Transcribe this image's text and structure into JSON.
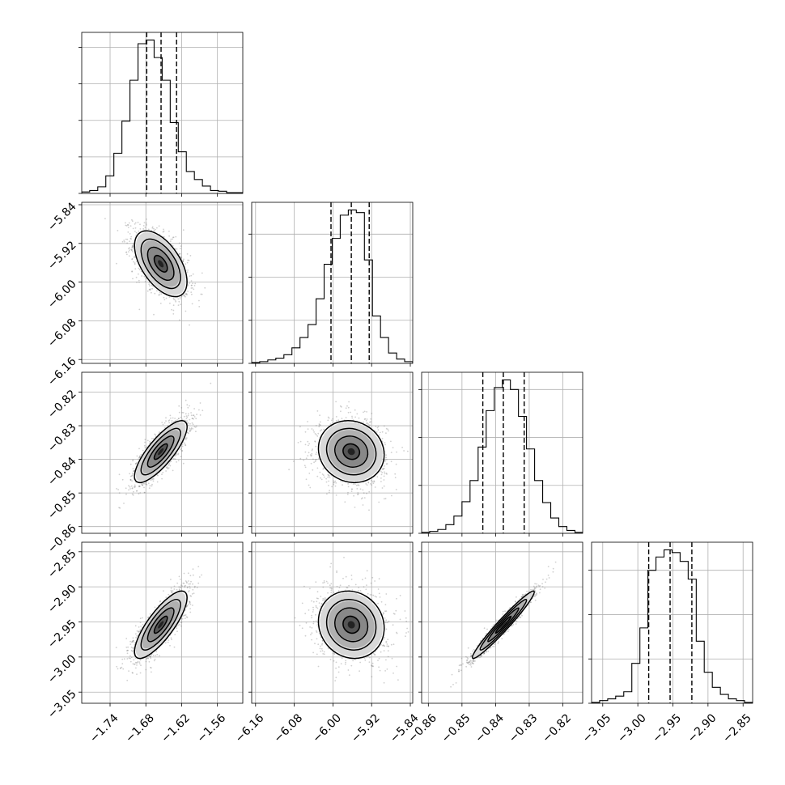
{
  "chart_data": {
    "type": "corner",
    "parameters": [
      {
        "ticks": [
          -1.74,
          -1.68,
          -1.62,
          -1.56
        ],
        "tick_labels": [
          "−1.74",
          "−1.68",
          "−1.62",
          "−1.56"
        ],
        "range": [
          -1.7875,
          -1.5175
        ],
        "quantiles": [
          -1.6785,
          -1.6545,
          -1.6285
        ],
        "hist_bins": [
          -1.7809,
          -1.7674,
          -1.7539,
          -1.7404,
          -1.7269,
          -1.7134,
          -1.6999,
          -1.6864,
          -1.6729,
          -1.6594,
          -1.6459,
          -1.6324,
          -1.6189,
          -1.6054,
          -1.5919,
          -1.5784,
          -1.5649,
          -1.5514,
          -1.5379,
          -1.5244
        ],
        "hist_values": [
          2,
          4,
          9,
          24,
          55,
          99,
          155,
          205,
          210,
          186,
          155,
          97,
          57,
          30,
          19,
          10,
          4,
          3,
          1,
          1
        ]
      },
      {
        "ticks": [
          -6.16,
          -6.08,
          -6.0,
          -5.92,
          -5.84
        ],
        "tick_labels": [
          "−6.16",
          "−6.08",
          "−6.00",
          "−5.92",
          "−5.84"
        ],
        "range": [
          -6.168,
          -5.835
        ],
        "quantiles": [
          -6.004,
          -5.962,
          -5.925
        ],
        "hist_bins": [
          -6.1597,
          -6.1431,
          -6.1264,
          -6.1098,
          -6.0931,
          -6.0765,
          -6.0598,
          -6.0432,
          -6.0265,
          -6.0099,
          -5.9932,
          -5.9766,
          -5.9599,
          -5.9433,
          -5.9266,
          -5.91,
          -5.8933,
          -5.8767,
          -5.86,
          -5.8434
        ],
        "hist_values": [
          1,
          2,
          4,
          6,
          10,
          18,
          30,
          45,
          75,
          115,
          145,
          172,
          178,
          175,
          120,
          55,
          30,
          12,
          5,
          2
        ]
      },
      {
        "ticks": [
          -0.86,
          -0.85,
          -0.84,
          -0.83,
          -0.82
        ],
        "tick_labels": [
          "−0.86",
          "−0.85",
          "−0.84",
          "−0.83",
          "−0.82"
        ],
        "range": [
          -0.862,
          -0.8141
        ],
        "quantiles": [
          -0.8438,
          -0.8377,
          -0.8315
        ],
        "hist_bins": [
          -0.8608,
          -0.8584,
          -0.856,
          -0.8536,
          -0.8512,
          -0.8488,
          -0.8464,
          -0.844,
          -0.8416,
          -0.8392,
          -0.8368,
          -0.8344,
          -0.832,
          -0.8296,
          -0.8272,
          -0.8248,
          -0.8224,
          -0.82,
          -0.8176,
          -0.8152
        ],
        "hist_values": [
          1,
          2,
          4,
          9,
          18,
          33,
          55,
          90,
          128,
          152,
          160,
          150,
          122,
          88,
          55,
          32,
          16,
          7,
          3,
          1
        ]
      },
      {
        "ticks": [
          -3.05,
          -3.0,
          -2.95,
          -2.9,
          -2.85
        ],
        "tick_labels": [
          "−3.05",
          "−3.00",
          "−2.95",
          "−2.90",
          "−2.85"
        ],
        "range": [
          -3.0659,
          -2.8364
        ],
        "quantiles": [
          -2.9845,
          -2.954,
          -2.923
        ],
        "hist_bins": [
          -3.0602,
          -3.0487,
          -3.0372,
          -3.0258,
          -3.0143,
          -3.0028,
          -2.9913,
          -2.9799,
          -2.9684,
          -2.9569,
          -2.9454,
          -2.934,
          -2.9225,
          -2.911,
          -2.8996,
          -2.8881,
          -2.8766,
          -2.8651,
          -2.8537,
          -2.8422
        ],
        "hist_values": [
          1,
          3,
          5,
          8,
          13,
          45,
          85,
          150,
          165,
          173,
          170,
          160,
          140,
          70,
          35,
          18,
          10,
          5,
          3,
          1
        ]
      }
    ],
    "histogram_yticks": [
      [
        0,
        50,
        100,
        150,
        200
      ],
      [
        0,
        50,
        100,
        150,
        200
      ],
      [
        0,
        50,
        100,
        150,
        200
      ],
      [
        0,
        50,
        100,
        150,
        200
      ]
    ],
    "pairs": [
      {
        "x": 0,
        "y": 1,
        "center": [
          -1.655,
          -5.962
        ],
        "sigma": [
          0.022,
          0.034
        ],
        "corr": -0.55
      },
      {
        "x": 0,
        "y": 2,
        "center": [
          -1.655,
          -0.8377
        ],
        "sigma": [
          0.022,
          0.0046
        ],
        "corr": 0.8
      },
      {
        "x": 1,
        "y": 2,
        "center": [
          -5.962,
          -0.8377
        ],
        "sigma": [
          0.034,
          0.0046
        ],
        "corr": -0.1
      },
      {
        "x": 0,
        "y": 3,
        "center": [
          -1.655,
          -2.954
        ],
        "sigma": [
          0.022,
          0.024
        ],
        "corr": 0.8
      },
      {
        "x": 1,
        "y": 3,
        "center": [
          -5.962,
          -2.954
        ],
        "sigma": [
          0.034,
          0.024
        ],
        "corr": -0.1
      },
      {
        "x": 2,
        "y": 3,
        "center": [
          -0.8377,
          -2.954
        ],
        "sigma": [
          0.0046,
          0.024
        ],
        "corr": 0.97
      }
    ],
    "contour_levels_sigma": [
      0.5,
      1.0,
      1.5,
      2.0
    ],
    "quantile_line_style": "dashed",
    "grid": true,
    "colors": {
      "line": "#000000",
      "grid": "#b0b0b0",
      "points": "#777777",
      "background": "#ffffff"
    }
  }
}
